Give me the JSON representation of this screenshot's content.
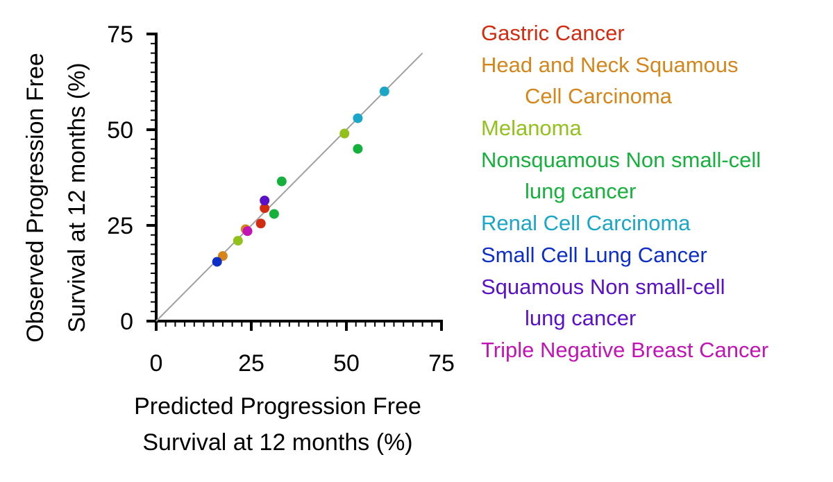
{
  "chart_data": {
    "type": "scatter",
    "xlabel": [
      "Predicted Progression Free",
      "Survival at 12 months (%)"
    ],
    "ylabel": [
      "Observed Progression Free",
      "Survival at 12 months (%)"
    ],
    "xlim": [
      0,
      75
    ],
    "ylim": [
      0,
      75
    ],
    "xticks": [
      0,
      25,
      50,
      75
    ],
    "yticks": [
      0,
      25,
      50,
      75
    ],
    "x_tick_labels": [
      "0",
      "25",
      "50",
      "75"
    ],
    "y_tick_labels": [
      "0",
      "25",
      "50",
      "75"
    ],
    "grid": false,
    "identity_line": {
      "from": [
        0,
        0
      ],
      "to": [
        70,
        70
      ],
      "color": "#a0a0a0"
    },
    "legend_position": "right",
    "series": [
      {
        "name": "Gastric Cancer",
        "legend_lines": [
          "Gastric Cancer"
        ],
        "color": "#d22b10",
        "points": [
          {
            "x": 28.5,
            "y": 29.5
          },
          {
            "x": 27.5,
            "y": 25.5
          }
        ]
      },
      {
        "name": "Head and Neck Squamous Cell Carcinoma",
        "legend_lines": [
          "Head and Neck Squamous",
          "Cell Carcinoma"
        ],
        "color": "#d4861a",
        "points": [
          {
            "x": 17.5,
            "y": 17.0
          },
          {
            "x": 23.5,
            "y": 24.0
          }
        ]
      },
      {
        "name": "Melanoma",
        "legend_lines": [
          "Melanoma"
        ],
        "color": "#93c11c",
        "points": [
          {
            "x": 21.5,
            "y": 21.0
          },
          {
            "x": 49.5,
            "y": 49.0
          }
        ]
      },
      {
        "name": "Nonsquamous Non small-cell lung cancer",
        "legend_lines": [
          "Nonsquamous Non small-cell",
          "lung cancer"
        ],
        "color": "#16b03c",
        "points": [
          {
            "x": 33.0,
            "y": 36.5
          },
          {
            "x": 31.0,
            "y": 28.0
          },
          {
            "x": 53.0,
            "y": 45.0
          }
        ]
      },
      {
        "name": "Renal Cell Carcinoma",
        "legend_lines": [
          "Renal Cell Carcinoma"
        ],
        "color": "#1aa6c6",
        "points": [
          {
            "x": 53.0,
            "y": 53.0
          },
          {
            "x": 60.0,
            "y": 60.0
          }
        ]
      },
      {
        "name": "Small Cell Lung Cancer",
        "legend_lines": [
          "Small Cell Lung Cancer"
        ],
        "color": "#0d2fc8",
        "points": [
          {
            "x": 16.0,
            "y": 15.5
          }
        ]
      },
      {
        "name": "Squamous Non small-cell lung cancer",
        "legend_lines": [
          "Squamous Non small-cell",
          "lung cancer"
        ],
        "color": "#5a10c8",
        "points": [
          {
            "x": 28.5,
            "y": 31.5
          }
        ]
      },
      {
        "name": "Triple Negative Breast Cancer",
        "legend_lines": [
          "Triple Negative Breast Cancer"
        ],
        "color": "#c214b4",
        "points": [
          {
            "x": 24.0,
            "y": 23.5
          }
        ]
      }
    ]
  }
}
